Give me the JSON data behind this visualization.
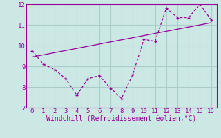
{
  "xlabel": "Windchill (Refroidissement éolien,°C)",
  "bg_color": "#cce8e4",
  "grid_color": "#aacccc",
  "line_color": "#990099",
  "x_data": [
    0,
    1,
    2,
    3,
    4,
    5,
    6,
    7,
    8,
    9,
    10,
    11,
    12,
    13,
    14,
    15,
    16
  ],
  "y_data": [
    9.75,
    9.1,
    8.85,
    8.4,
    7.6,
    8.4,
    8.55,
    7.95,
    7.45,
    8.6,
    10.3,
    10.2,
    11.8,
    11.35,
    11.35,
    12.0,
    11.25
  ],
  "trend_x": [
    0,
    16
  ],
  "trend_y": [
    9.45,
    11.1
  ],
  "xlim": [
    -0.5,
    16.5
  ],
  "ylim": [
    7,
    12
  ],
  "xticks": [
    0,
    1,
    2,
    3,
    4,
    5,
    6,
    7,
    8,
    9,
    10,
    11,
    12,
    13,
    14,
    15,
    16
  ],
  "yticks": [
    7,
    8,
    9,
    10,
    11,
    12
  ],
  "tick_fontsize": 6.5,
  "xlabel_fontsize": 7
}
